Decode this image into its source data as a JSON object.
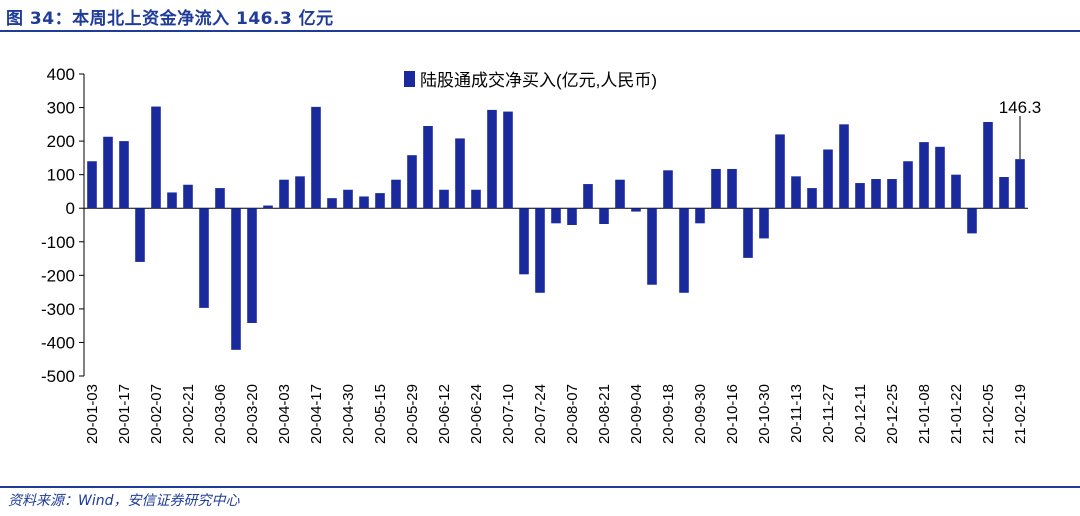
{
  "header": {
    "title": "图 34：本周北上资金净流入 146.3 亿元"
  },
  "footer": {
    "source": "资料来源：Wind，安信证券研究中心"
  },
  "colors": {
    "bar": "#1a2a9c",
    "accent": "#1f3c99"
  },
  "chart_data": {
    "type": "bar",
    "legend": "陆股通成交净买入(亿元,人民币)",
    "legend_position": "top-center",
    "grid": false,
    "ylim": [
      -500,
      400
    ],
    "yticks": [
      "400",
      "300",
      "200",
      "100",
      "0",
      "-100",
      "-200",
      "-300",
      "-400",
      "-500"
    ],
    "ytick_values": [
      400,
      300,
      200,
      100,
      0,
      -100,
      -200,
      -300,
      -400,
      -500
    ],
    "xtick_labels": [
      "20-01-03",
      "20-01-17",
      "20-02-07",
      "20-02-21",
      "20-03-06",
      "20-03-20",
      "20-04-03",
      "20-04-17",
      "20-04-30",
      "20-05-15",
      "20-05-29",
      "20-06-12",
      "20-06-24",
      "20-07-10",
      "20-07-24",
      "20-08-07",
      "20-08-21",
      "20-09-04",
      "20-09-18",
      "20-09-30",
      "20-10-16",
      "20-10-30",
      "20-11-13",
      "20-11-27",
      "20-12-11",
      "20-12-25",
      "21-01-08",
      "21-01-22",
      "21-02-05",
      "21-02-19"
    ],
    "series": [
      {
        "name": "陆股通成交净买入(亿元,人民币)",
        "values": [
          140,
          213,
          200,
          -160,
          303,
          47,
          70,
          -297,
          60,
          -422,
          -342,
          8,
          85,
          95,
          302,
          30,
          55,
          35,
          45,
          85,
          158,
          245,
          55,
          208,
          55,
          293,
          288,
          -197,
          -252,
          -45,
          -50,
          72,
          -47,
          85,
          -10,
          -228,
          113,
          -252,
          -45,
          117,
          117,
          -148,
          -90,
          220,
          95,
          60,
          175,
          250,
          75,
          87,
          87,
          140,
          197,
          183,
          100,
          -75,
          257,
          93,
          146.3
        ]
      }
    ],
    "annotations": [
      {
        "label": "146.3",
        "bar_index": 58,
        "value": 146.3
      }
    ]
  }
}
